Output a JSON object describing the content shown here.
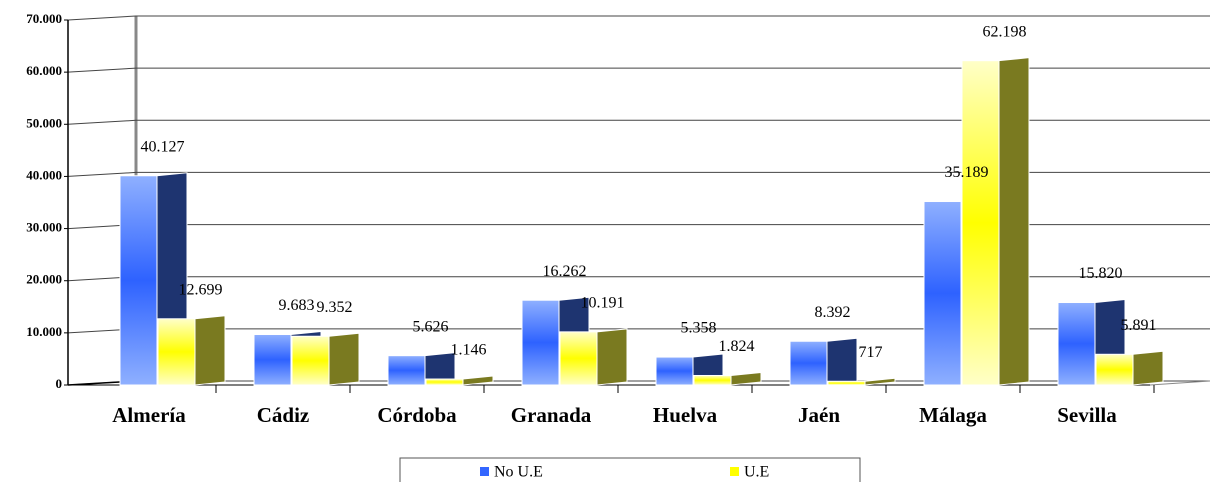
{
  "chart_data": {
    "type": "bar",
    "categories": [
      "Almería",
      "Cádiz",
      "Córdoba",
      "Granada",
      "Huelva",
      "Jaén",
      "Málaga",
      "Sevilla"
    ],
    "series": [
      {
        "name": "No U.E",
        "color": "#3366ff",
        "values": [
          40127,
          9683,
          5626,
          16262,
          5358,
          8392,
          35189,
          15820
        ],
        "value_labels": [
          "40.127",
          "9.683",
          "5.626",
          "16.262",
          "5.358",
          "8.392",
          "35.189",
          "15.820"
        ]
      },
      {
        "name": "U.E",
        "color": "#ffff00",
        "values": [
          12699,
          9352,
          1146,
          10191,
          1824,
          717,
          62198,
          5891
        ],
        "value_labels": [
          "12.699",
          "9.352",
          "1.146",
          "10.191",
          "1.824",
          "717",
          "62.198",
          "5.891"
        ]
      }
    ],
    "ylim": [
      0,
      70000
    ],
    "yticks": [
      0,
      {
        "value": 10000,
        "label": "10.000"
      },
      {
        "value": 20000,
        "label": "20.000"
      },
      {
        "value": 30000,
        "label": "30.000"
      },
      {
        "value": 40000,
        "label": "40.000"
      },
      {
        "value": 50000,
        "label": "50.000"
      },
      {
        "value": 60000,
        "label": "60.000"
      },
      {
        "value": 70000,
        "label": "70.000"
      }
    ],
    "grid": true
  }
}
